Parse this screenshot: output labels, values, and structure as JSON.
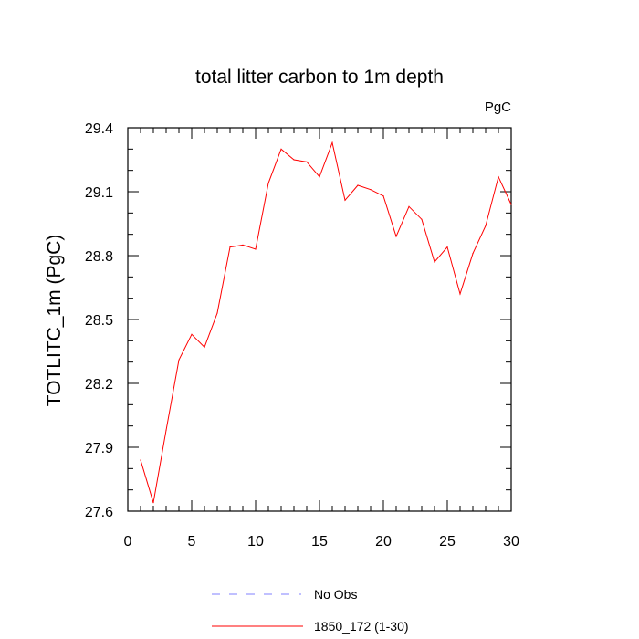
{
  "chart_data": {
    "type": "line",
    "title": "total litter carbon to 1m depth",
    "units": "PgC",
    "xlabel": "",
    "ylabel": "TOTLITC_1m  (PgC)",
    "xlim": [
      0,
      30
    ],
    "ylim": [
      27.6,
      29.4
    ],
    "x_ticks": [
      0,
      5,
      10,
      15,
      20,
      25,
      30
    ],
    "y_ticks": [
      27.6,
      27.9,
      28.2,
      28.5,
      28.8,
      29.1,
      29.4
    ],
    "y_tick_labels": [
      "27.6",
      "27.9",
      "28.2",
      "28.5",
      "28.8",
      "29.1",
      "29.4"
    ],
    "x_tick_labels": [
      "0",
      "5",
      "10",
      "15",
      "20",
      "25",
      "30"
    ],
    "grid": false,
    "legend_placement": "bottom",
    "series": [
      {
        "name": "No Obs",
        "color": "#8080ff",
        "dash": "dashed",
        "x": [],
        "values": []
      },
      {
        "name": "1850_172 (1-30)",
        "color": "#ff0000",
        "dash": "solid",
        "x": [
          1,
          2,
          3,
          4,
          5,
          6,
          7,
          8,
          9,
          10,
          11,
          12,
          13,
          14,
          15,
          16,
          17,
          18,
          19,
          20,
          21,
          22,
          23,
          24,
          25,
          26,
          27,
          28,
          29,
          30
        ],
        "values": [
          27.84,
          27.64,
          27.98,
          28.31,
          28.43,
          28.37,
          28.53,
          28.84,
          28.85,
          28.83,
          29.14,
          29.3,
          29.25,
          29.24,
          29.17,
          29.33,
          29.06,
          29.13,
          29.11,
          29.08,
          28.89,
          29.03,
          28.97,
          28.77,
          28.84,
          28.62,
          28.81,
          28.94,
          29.17,
          29.04
        ]
      }
    ]
  }
}
